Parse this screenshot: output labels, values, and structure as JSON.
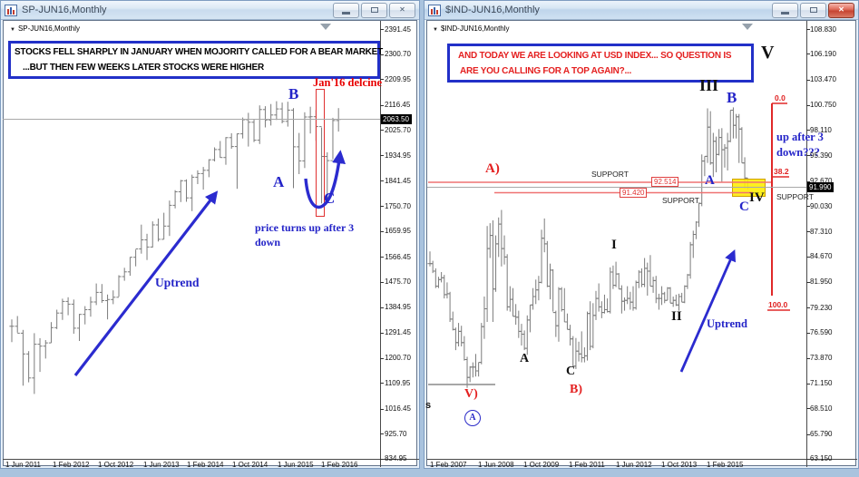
{
  "desktop_bg": "#a9c3de",
  "left": {
    "window_title": "SP-JUN16,Monthly",
    "chart_label": "SP-JUN16,Monthly",
    "note1": "STOCKS FELL SHARPLY IN JANUARY WHEN MOJORITY CALLED FOR A BEAR MARKET",
    "note2": "...BUT THEN FEW WEEKS LATER STOCKS WERE HIGHER",
    "jan_decline_label": "Jan'16 delcine",
    "wave_a": "A",
    "wave_b": "B",
    "wave_c": "C",
    "turns_up_line1": "price turns up after 3",
    "turns_up_line2": "down",
    "uptrend_label": "Uptrend",
    "current_price": "2063.50",
    "y_axis_labels": [
      "2391.45",
      "2300.70",
      "2209.95",
      "2116.45",
      "2025.70",
      "1934.95",
      "1841.45",
      "1750.70",
      "1659.95",
      "1566.45",
      "1475.70",
      "1384.95",
      "1291.45",
      "1200.70",
      "1109.95",
      "1016.45",
      "925.70",
      "834.95"
    ],
    "x_axis_labels": [
      "1 Jun 2011",
      "1 Feb 2012",
      "1 Oct 2012",
      "1 Jun 2013",
      "1 Feb 2014",
      "1 Oct 2014",
      "1 Jun 2015",
      "1 Feb 2016"
    ]
  },
  "right": {
    "window_title": "$IND-JUN16,Monthly",
    "chart_label": "$IND-JUN16,Monthly",
    "note1": "AND TODAY WE ARE LOOKING AT USD INDEX... SO QUESTION IS",
    "note2": "ARE YOU CALLING FOR A TOP AGAIN?...",
    "wave_I": "I",
    "wave_II": "II",
    "wave_III": "III",
    "wave_IV": "IV",
    "wave_V": "V",
    "abc_a": "A",
    "abc_b": "B",
    "abc_c": "C",
    "lower_a": "A",
    "lower_c": "C",
    "red_a": "A)",
    "red_b": "B)",
    "red_v": "V)",
    "circled_a": "A",
    "cutoff_text": "s",
    "support_label": "SUPPORT",
    "level_92514": "92.514",
    "level_91420": "91.420",
    "fib_0": "0.0",
    "fib_382": "38.2",
    "fib_100": "100.0",
    "up_after_line1": "up after 3",
    "up_after_line2": "down???",
    "uptrend_label": "Uptrend",
    "current_price": "91.990",
    "y_axis_labels": [
      "108.830",
      "106.190",
      "103.470",
      "100.750",
      "98.110",
      "95.390",
      "92.670",
      "90.030",
      "87.310",
      "84.670",
      "81.950",
      "79.230",
      "76.590",
      "73.870",
      "71.150",
      "68.510",
      "65.790",
      "63.150"
    ],
    "x_axis_labels": [
      "1 Feb 2007",
      "1 Jun 2008",
      "1 Oct 2009",
      "1 Feb 2011",
      "1 Jun 2012",
      "1 Oct 2013",
      "1 Feb 2015"
    ]
  },
  "chart_data": [
    {
      "type": "ohlc-bar",
      "symbol": "SP-JUN16",
      "timeframe": "Monthly",
      "x_start": "Jun 2011",
      "x_end": "Apr 2016",
      "y_range": [
        834.95,
        2391.45
      ],
      "current_price": 2063.5,
      "bars_hlc": [
        [
          1340,
          1258,
          1315
        ],
        [
          1352,
          1292,
          1290
        ],
        [
          1302,
          1100,
          1215
        ],
        [
          1225,
          1112,
          1128
        ],
        [
          1290,
          1070,
          1250
        ],
        [
          1272,
          1150,
          1243
        ],
        [
          1265,
          1198,
          1255
        ],
        [
          1330,
          1255,
          1310
        ],
        [
          1375,
          1305,
          1363
        ],
        [
          1415,
          1338,
          1405
        ],
        [
          1420,
          1355,
          1395
        ],
        [
          1412,
          1288,
          1308
        ],
        [
          1360,
          1262,
          1358
        ],
        [
          1388,
          1322,
          1375
        ],
        [
          1422,
          1350,
          1403
        ],
        [
          1470,
          1392,
          1438
        ],
        [
          1468,
          1400,
          1408
        ],
        [
          1430,
          1340,
          1412
        ],
        [
          1445,
          1395,
          1420
        ],
        [
          1500,
          1422,
          1495
        ],
        [
          1527,
          1480,
          1512
        ],
        [
          1566,
          1498,
          1565
        ],
        [
          1593,
          1532,
          1595
        ],
        [
          1683,
          1578,
          1628
        ],
        [
          1650,
          1555,
          1602
        ],
        [
          1695,
          1600,
          1682
        ],
        [
          1705,
          1622,
          1630
        ],
        [
          1726,
          1630,
          1678
        ],
        [
          1770,
          1642,
          1753
        ],
        [
          1808,
          1742,
          1802
        ],
        [
          1845,
          1765,
          1842
        ],
        [
          1847,
          1766,
          1780
        ],
        [
          1864,
          1732,
          1855
        ],
        [
          1880,
          1830,
          1868
        ],
        [
          1892,
          1810,
          1880
        ],
        [
          1920,
          1855,
          1918
        ],
        [
          1963,
          1912,
          1955
        ],
        [
          1986,
          1925,
          1926
        ],
        [
          2000,
          1900,
          1998
        ],
        [
          2014,
          1958,
          1966
        ],
        [
          2013,
          1813,
          2012
        ],
        [
          2071,
          1995,
          2063
        ],
        [
          2088,
          1966,
          2054
        ],
        [
          2066,
          1982,
          1989
        ],
        [
          2115,
          1975,
          2100
        ],
        [
          2112,
          2035,
          2062
        ],
        [
          2120,
          2042,
          2080
        ],
        [
          2130,
          2062,
          2102
        ],
        [
          2125,
          2050,
          2057
        ],
        [
          2128,
          2038,
          2098
        ],
        [
          2105,
          1815,
          1965
        ],
        [
          2015,
          1866,
          1914
        ],
        [
          2090,
          1888,
          2073
        ],
        [
          2110,
          2013,
          2074
        ],
        [
          2098,
          1987,
          2038
        ],
        [
          2035,
          1760,
          1930
        ],
        [
          1945,
          1770,
          1915
        ],
        [
          2070,
          1920,
          2060
        ],
        [
          2105,
          2020,
          2064
        ]
      ]
    },
    {
      "type": "ohlc-bar",
      "symbol": "$IND-JUN16",
      "timeframe": "Monthly",
      "x_start": "Feb 2007",
      "x_end": "May 2016",
      "y_range": [
        63.15,
        108.83
      ],
      "current_price": 91.99,
      "support_levels": [
        92.514,
        91.42
      ],
      "fib_levels": {
        "0.0": 100.9,
        "38.2": 93.1,
        "100.0": 80.5
      },
      "bars_hlc": [
        [
          85.2,
          83.6,
          83.9
        ],
        [
          84.2,
          82.9,
          83.1
        ],
        [
          83.4,
          81.3,
          81.5
        ],
        [
          82.5,
          81.3,
          82.2
        ],
        [
          83.0,
          81.9,
          82.4
        ],
        [
          82.7,
          80.2,
          80.6
        ],
        [
          81.9,
          80.2,
          80.7
        ],
        [
          80.9,
          77.7,
          78.0
        ],
        [
          78.8,
          76.8,
          76.9
        ],
        [
          77.1,
          74.7,
          75.5
        ],
        [
          77.6,
          75.1,
          76.7
        ],
        [
          77.3,
          75.1,
          75.5
        ],
        [
          76.2,
          73.6,
          73.7
        ],
        [
          74.0,
          70.7,
          71.8
        ],
        [
          73.0,
          71.3,
          72.9
        ],
        [
          73.4,
          71.8,
          72.9
        ],
        [
          74.3,
          71.9,
          72.5
        ],
        [
          73.4,
          71.9,
          73.4
        ],
        [
          77.6,
          73.2,
          77.2
        ],
        [
          80.4,
          75.9,
          79.1
        ],
        [
          87.9,
          77.7,
          85.5
        ],
        [
          88.2,
          84.5,
          86.9
        ],
        [
          88.5,
          77.7,
          81.2
        ],
        [
          86.9,
          80.9,
          86.0
        ],
        [
          88.8,
          84.6,
          88.1
        ],
        [
          89.6,
          83.6,
          85.5
        ],
        [
          86.9,
          83.8,
          84.6
        ],
        [
          84.9,
          78.9,
          79.3
        ],
        [
          81.5,
          78.8,
          80.1
        ],
        [
          81.3,
          78.3,
          78.3
        ],
        [
          79.6,
          77.4,
          78.2
        ],
        [
          78.9,
          76.0,
          76.7
        ],
        [
          77.5,
          75.2,
          76.4
        ],
        [
          76.8,
          74.7,
          74.9
        ],
        [
          78.4,
          74.2,
          77.9
        ],
        [
          79.5,
          76.6,
          79.5
        ],
        [
          81.3,
          79.0,
          80.4
        ],
        [
          82.2,
          79.6,
          81.1
        ],
        [
          82.6,
          80.0,
          81.9
        ],
        [
          87.5,
          81.8,
          86.6
        ],
        [
          88.7,
          85.1,
          86.0
        ],
        [
          86.3,
          81.4,
          81.5
        ],
        [
          83.9,
          80.1,
          83.2
        ],
        [
          83.3,
          78.8,
          78.7
        ],
        [
          78.9,
          76.1,
          77.3
        ],
        [
          81.4,
          75.6,
          81.2
        ],
        [
          81.4,
          78.8,
          79.0
        ],
        [
          81.3,
          77.7,
          77.7
        ],
        [
          78.6,
          76.9,
          76.9
        ],
        [
          77.4,
          75.2,
          75.9
        ],
        [
          76.2,
          72.9,
          73.0
        ],
        [
          76.0,
          72.7,
          74.6
        ],
        [
          75.6,
          73.5,
          74.3
        ],
        [
          76.7,
          73.4,
          73.9
        ],
        [
          75.0,
          73.4,
          74.1
        ],
        [
          78.8,
          73.6,
          78.6
        ],
        [
          79.9,
          74.7,
          75.1
        ],
        [
          79.7,
          74.9,
          78.4
        ],
        [
          81.0,
          77.9,
          80.2
        ],
        [
          81.8,
          78.8,
          79.3
        ],
        [
          79.9,
          78.1,
          78.7
        ],
        [
          80.6,
          78.6,
          79.0
        ],
        [
          80.2,
          78.7,
          78.8
        ],
        [
          83.5,
          78.6,
          83.0
        ],
        [
          83.7,
          81.2,
          81.6
        ],
        [
          84.1,
          81.4,
          82.8
        ],
        [
          82.9,
          81.2,
          81.2
        ],
        [
          81.6,
          78.6,
          79.9
        ],
        [
          80.3,
          78.9,
          80.0
        ],
        [
          81.5,
          79.6,
          80.2
        ],
        [
          80.9,
          79.0,
          79.8
        ],
        [
          81.5,
          78.9,
          79.2
        ],
        [
          82.1,
          79.0,
          81.9
        ],
        [
          83.2,
          81.3,
          83.0
        ],
        [
          83.4,
          81.4,
          81.7
        ],
        [
          84.5,
          81.4,
          83.4
        ],
        [
          84.0,
          80.5,
          83.1
        ],
        [
          84.8,
          81.5,
          81.5
        ],
        [
          82.5,
          80.8,
          82.1
        ],
        [
          82.6,
          79.7,
          80.2
        ],
        [
          80.7,
          79.0,
          80.2
        ],
        [
          81.5,
          79.5,
          80.7
        ],
        [
          80.9,
          79.7,
          80.0
        ],
        [
          81.4,
          80.0,
          81.3
        ],
        [
          81.4,
          79.7,
          79.7
        ],
        [
          80.4,
          79.3,
          80.0
        ],
        [
          80.6,
          79.4,
          79.5
        ],
        [
          80.7,
          78.9,
          80.4
        ],
        [
          80.8,
          79.8,
          79.8
        ],
        [
          81.6,
          79.7,
          81.5
        ],
        [
          82.8,
          81.2,
          82.7
        ],
        [
          86.2,
          82.3,
          85.9
        ],
        [
          87.4,
          84.5,
          87.0
        ],
        [
          88.4,
          86.5,
          88.3
        ],
        [
          90.4,
          87.8,
          90.3
        ],
        [
          95.5,
          90.0,
          94.8
        ],
        [
          95.3,
          93.2,
          95.3
        ],
        [
          100.4,
          94.6,
          98.4
        ],
        [
          100.1,
          94.4,
          94.6
        ],
        [
          97.8,
          93.1,
          96.9
        ],
        [
          97.4,
          93.6,
          95.5
        ],
        [
          98.2,
          95.4,
          97.3
        ],
        [
          98.3,
          92.6,
          96.0
        ],
        [
          96.6,
          94.1,
          96.2
        ],
        [
          97.8,
          93.8,
          96.9
        ],
        [
          100.2,
          96.8,
          100.2
        ],
        [
          100.5,
          97.2,
          98.6
        ],
        [
          99.8,
          97.2,
          99.5
        ],
        [
          99.8,
          94.6,
          98.2
        ],
        [
          98.4,
          94.6,
          94.6
        ],
        [
          95.2,
          91.9,
          93.0
        ],
        [
          93.0,
          91.8,
          91.99
        ]
      ]
    }
  ]
}
